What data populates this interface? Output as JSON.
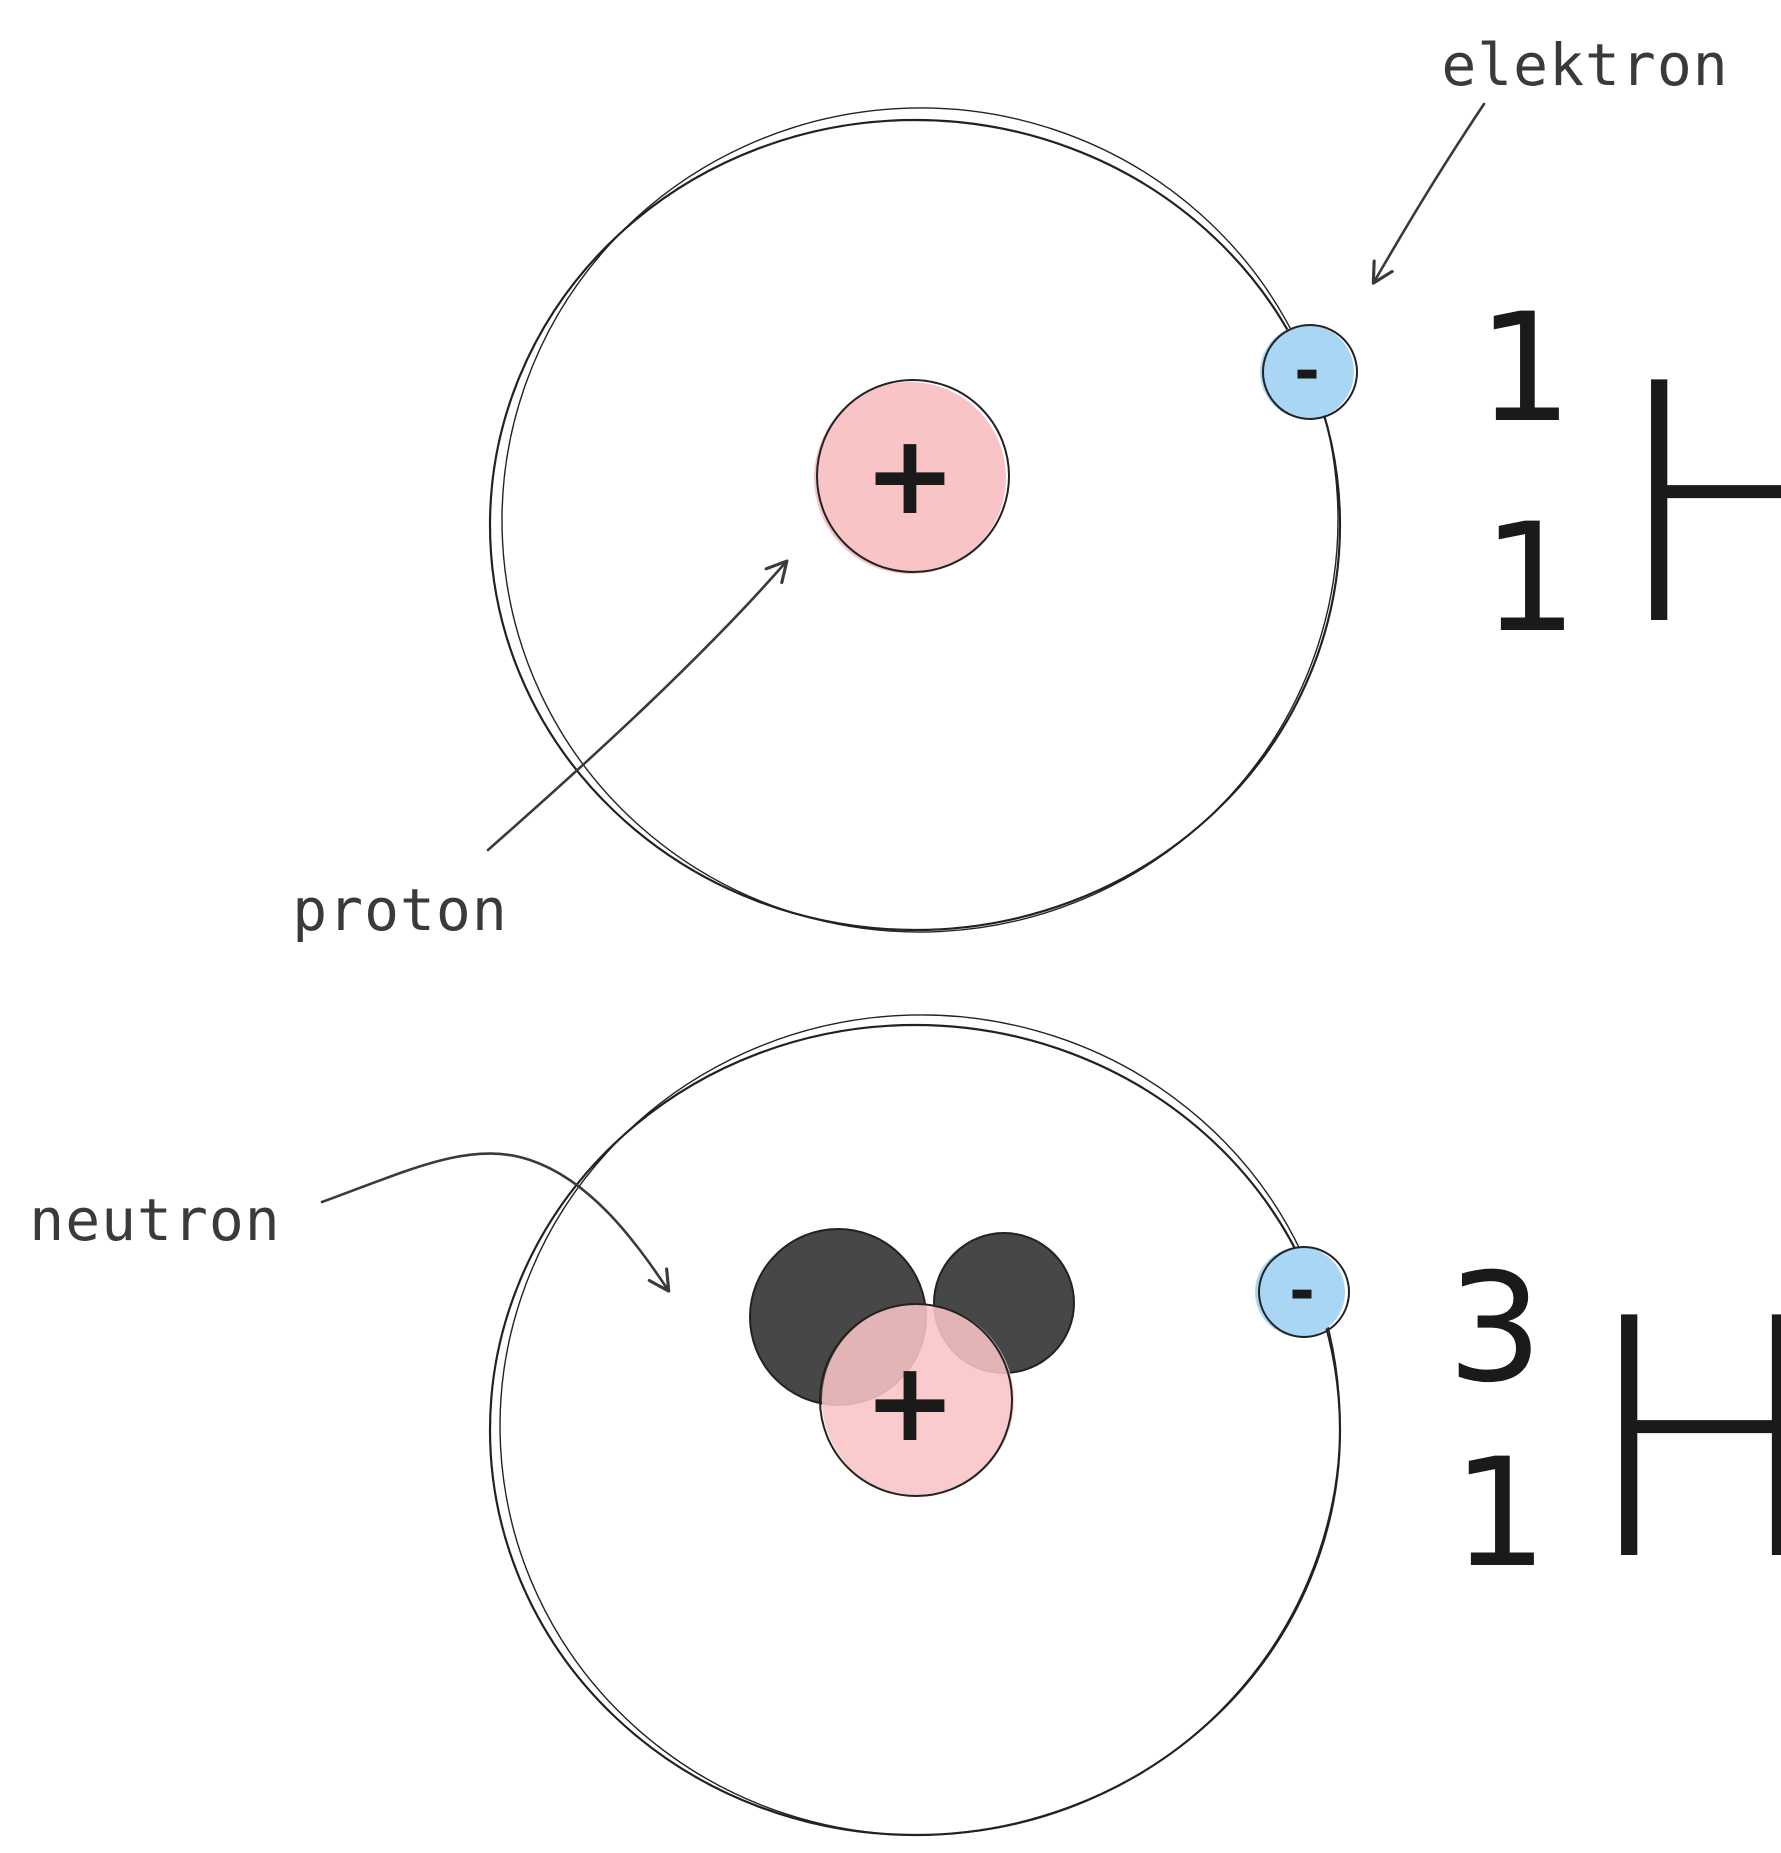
{
  "labels": {
    "electron": "elektron",
    "proton": "proton",
    "neutron": "neutron"
  },
  "atoms": [
    {
      "mass_number": "1",
      "atomic_number": "1",
      "element": "H",
      "proton_sign": "+",
      "electron_sign": "-"
    },
    {
      "mass_number": "3",
      "atomic_number": "1",
      "element": "H",
      "proton_sign": "+",
      "electron_sign": "-"
    }
  ],
  "colors": {
    "proton": "#f9c4c6",
    "electron": "#a9d6f5",
    "neutron": "#474747",
    "outline": "#222222",
    "label": "#3a3a3a"
  }
}
